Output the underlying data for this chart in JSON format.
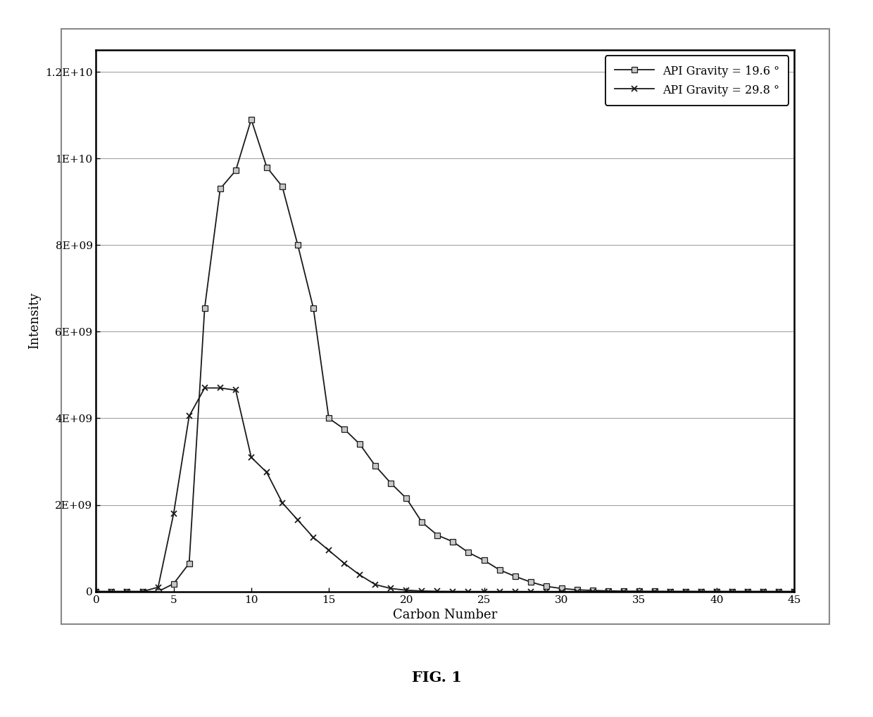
{
  "series1_label": "API Gravity = 19.6 °",
  "series2_label": "API Gravity = 29.8 °",
  "series1_x": [
    0,
    1,
    2,
    3,
    4,
    5,
    6,
    7,
    8,
    9,
    10,
    11,
    12,
    13,
    14,
    15,
    16,
    17,
    18,
    19,
    20,
    21,
    22,
    23,
    24,
    25,
    26,
    27,
    28,
    29,
    30,
    31,
    32,
    33,
    34,
    35,
    36,
    37,
    38,
    39,
    40,
    41,
    42,
    43,
    44,
    45
  ],
  "series1_y": [
    0,
    0,
    0,
    0,
    0,
    180000000.0,
    650000000.0,
    6550000000.0,
    9300000000.0,
    9720000000.0,
    10900000000.0,
    9800000000.0,
    9350000000.0,
    8000000000.0,
    6550000000.0,
    4000000000.0,
    3750000000.0,
    3400000000.0,
    2900000000.0,
    2500000000.0,
    2150000000.0,
    1600000000.0,
    1300000000.0,
    1150000000.0,
    900000000.0,
    720000000.0,
    500000000.0,
    350000000.0,
    220000000.0,
    120000000.0,
    70000000.0,
    40000000.0,
    25000000.0,
    15000000.0,
    8000000.0,
    5000000.0,
    3000000.0,
    2000000.0,
    1500000.0,
    1000000.0,
    700000.0,
    500000.0,
    300000.0,
    200000.0,
    100000.0,
    0
  ],
  "series2_x": [
    0,
    1,
    2,
    3,
    4,
    5,
    6,
    7,
    8,
    9,
    10,
    11,
    12,
    13,
    14,
    15,
    16,
    17,
    18,
    19,
    20,
    21,
    22,
    23,
    24,
    25,
    26,
    27,
    28,
    29,
    30,
    31,
    32,
    33,
    34,
    35,
    36,
    37,
    38,
    39,
    40,
    41,
    42,
    43,
    44,
    45
  ],
  "series2_y": [
    0,
    0,
    0,
    0,
    100000000.0,
    1800000000.0,
    4050000000.0,
    4700000000.0,
    4700000000.0,
    4650000000.0,
    3100000000.0,
    2750000000.0,
    2050000000.0,
    1650000000.0,
    1250000000.0,
    950000000.0,
    650000000.0,
    380000000.0,
    160000000.0,
    70000000.0,
    30000000.0,
    12000000.0,
    5000000.0,
    2000000.0,
    1000000.0,
    0,
    0,
    0,
    0,
    0,
    0,
    0,
    0,
    0,
    0,
    0,
    0,
    0,
    0,
    0,
    0,
    0,
    0,
    0,
    0,
    0
  ],
  "xlabel": "Carbon Number",
  "ylabel": "Intensity",
  "xlim": [
    0,
    45
  ],
  "ylim": [
    0,
    12500000000.0
  ],
  "yticks": [
    0,
    2000000000.0,
    4000000000.0,
    6000000000.0,
    8000000000.0,
    10000000000.0,
    12000000000.0
  ],
  "ytick_labels": [
    "0",
    "2E+09",
    "4E+09",
    "6E+09",
    "8E+09",
    "1E+10",
    "1.2E+10"
  ],
  "xticks": [
    0,
    5,
    10,
    15,
    20,
    25,
    30,
    35,
    40,
    45
  ],
  "xtick_labels": [
    "0",
    "5",
    "10",
    "15",
    "20",
    "25",
    "30",
    "35",
    "40",
    "45"
  ],
  "line_color": "#1a1a1a",
  "background_color": "#ffffff",
  "fig_caption": "FIG. 1",
  "grid_color": "#999999",
  "outer_border_color": "#888888"
}
